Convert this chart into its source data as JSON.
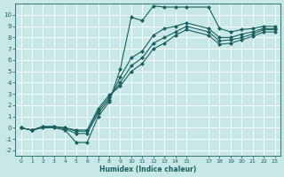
{
  "xlabel": "Humidex (Indice chaleur)",
  "bg_color": "#c8e8e8",
  "grid_color": "#ffffff",
  "line_color": "#1a6060",
  "xlim": [
    -0.5,
    23.5
  ],
  "ylim": [
    -2.5,
    11.0
  ],
  "xticks": [
    0,
    1,
    2,
    3,
    4,
    5,
    6,
    7,
    8,
    9,
    10,
    11,
    12,
    13,
    14,
    15,
    17,
    18,
    19,
    20,
    21,
    22,
    23
  ],
  "yticks": [
    -2,
    -1,
    0,
    1,
    2,
    3,
    4,
    5,
    6,
    7,
    8,
    9,
    10
  ],
  "line1_x": [
    0,
    1,
    2,
    3,
    4,
    5,
    6,
    7,
    8,
    9,
    10,
    11,
    12,
    13,
    14,
    15,
    17,
    18,
    19,
    20,
    21,
    22,
    23
  ],
  "line1_y": [
    0,
    -0.2,
    0.0,
    0.0,
    -0.2,
    -1.3,
    -1.3,
    1.0,
    2.3,
    5.2,
    9.8,
    9.5,
    10.8,
    10.7,
    10.7,
    10.7,
    10.7,
    8.8,
    8.5,
    8.7,
    8.8,
    9.0,
    9.0
  ],
  "line2_x": [
    0,
    1,
    2,
    3,
    4,
    5,
    6,
    7,
    8,
    9,
    10,
    11,
    12,
    13,
    14,
    15,
    17,
    18,
    19,
    20,
    21,
    22,
    23
  ],
  "line2_y": [
    0,
    -0.2,
    0.1,
    0.1,
    -0.1,
    -0.5,
    -0.5,
    1.3,
    2.5,
    4.5,
    6.2,
    6.8,
    8.2,
    8.8,
    9.0,
    9.3,
    8.8,
    8.0,
    8.0,
    8.3,
    8.5,
    8.8,
    8.8
  ],
  "line3_x": [
    0,
    1,
    2,
    3,
    4,
    5,
    6,
    7,
    8,
    9,
    10,
    11,
    12,
    13,
    14,
    15,
    17,
    18,
    19,
    20,
    21,
    22,
    23
  ],
  "line3_y": [
    0,
    -0.2,
    0.1,
    0.1,
    0.0,
    -0.3,
    -0.3,
    1.5,
    2.7,
    4.0,
    5.5,
    6.2,
    7.5,
    8.0,
    8.5,
    9.0,
    8.5,
    7.7,
    7.8,
    8.0,
    8.3,
    8.7,
    8.7
  ],
  "line4_x": [
    0,
    1,
    2,
    3,
    4,
    5,
    6,
    7,
    8,
    9,
    10,
    11,
    12,
    13,
    14,
    15,
    17,
    18,
    19,
    20,
    21,
    22,
    23
  ],
  "line4_y": [
    0,
    -0.2,
    0.1,
    0.1,
    0.0,
    -0.2,
    -0.2,
    1.7,
    2.9,
    3.7,
    5.0,
    5.7,
    7.0,
    7.5,
    8.2,
    8.7,
    8.2,
    7.4,
    7.5,
    7.8,
    8.1,
    8.5,
    8.5
  ]
}
